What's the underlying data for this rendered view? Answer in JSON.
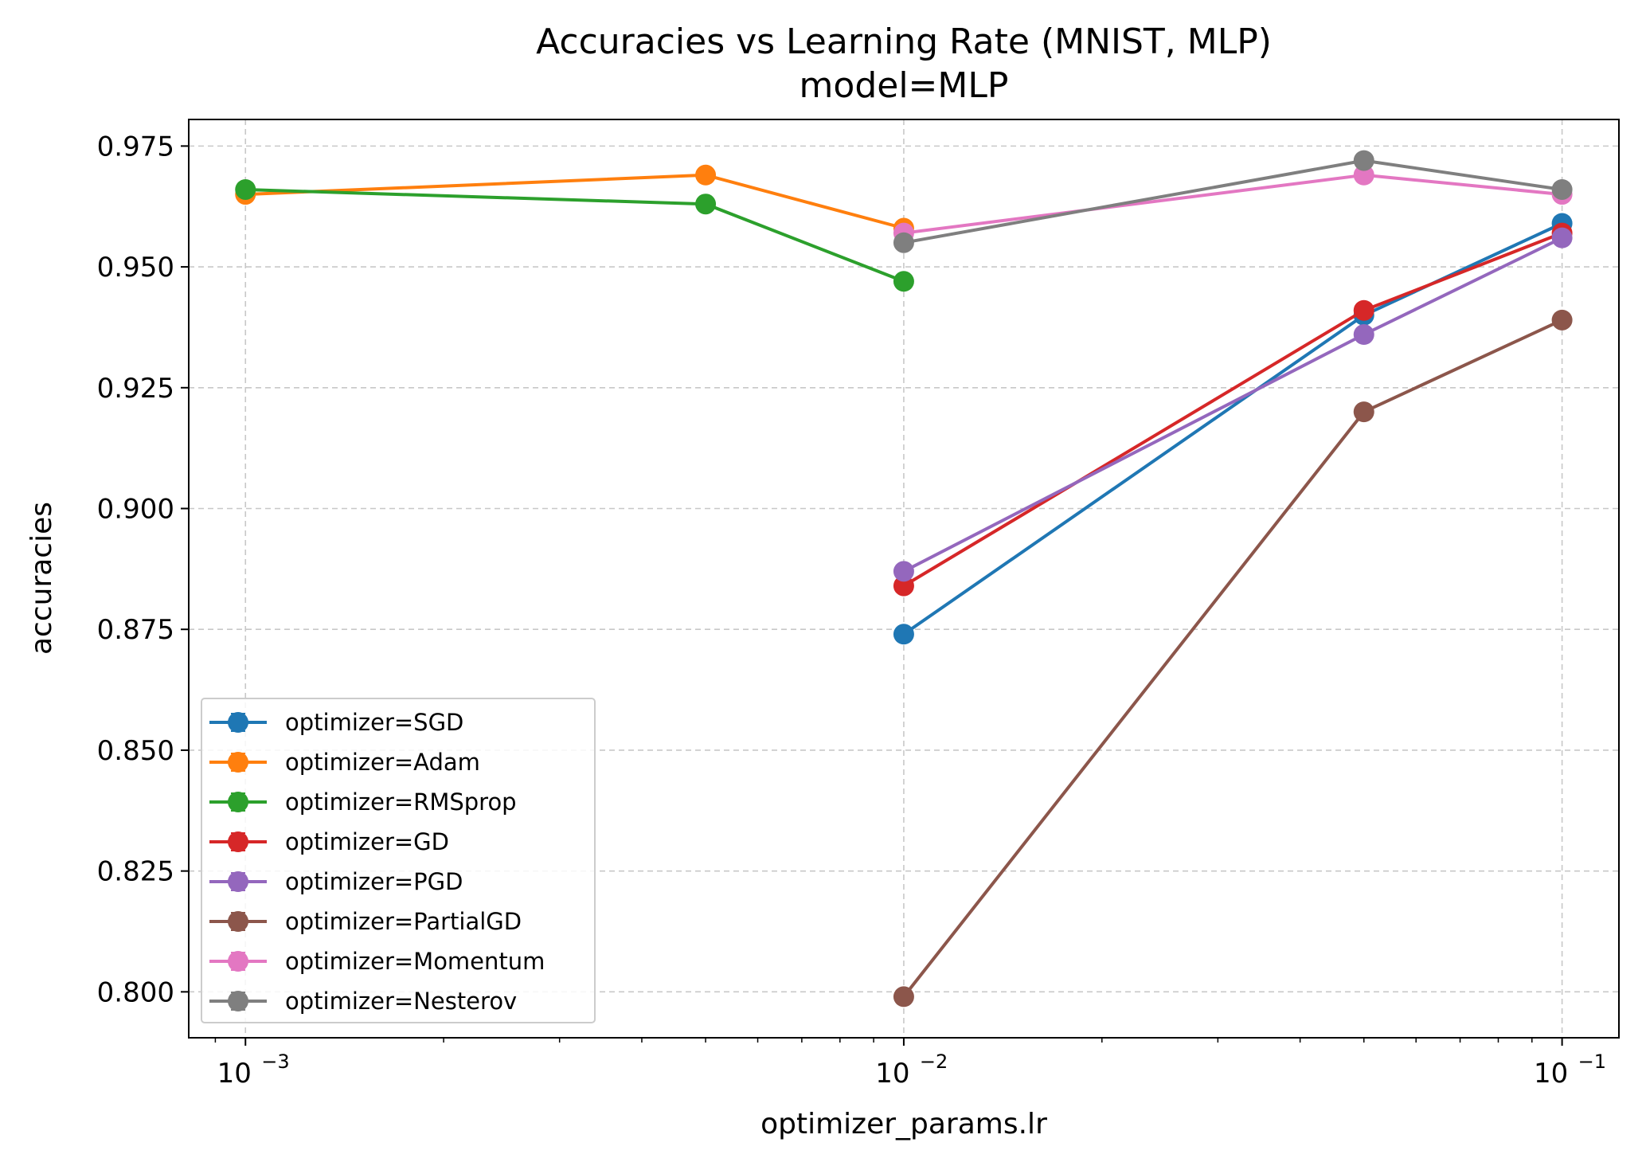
{
  "chart_data": {
    "type": "line",
    "title": "Accuracies vs Learning Rate (MNIST, MLP)",
    "subtitle": "model=MLP",
    "xlabel": "optimizer_params.lr",
    "ylabel": "accuracies",
    "xscale": "log",
    "xlim": [
      0.00082,
      0.122
    ],
    "ylim": [
      0.7905,
      0.9805
    ],
    "x_major_ticks": [
      0.001,
      0.01,
      0.1
    ],
    "x_tick_labels": [
      {
        "base": "10",
        "exp": "−3"
      },
      {
        "base": "10",
        "exp": "−2"
      },
      {
        "base": "10",
        "exp": "−1"
      }
    ],
    "y_ticks": [
      0.8,
      0.825,
      0.85,
      0.875,
      0.9,
      0.925,
      0.95,
      0.975
    ],
    "y_tick_labels": [
      "0.800",
      "0.825",
      "0.850",
      "0.875",
      "0.900",
      "0.925",
      "0.950",
      "0.975"
    ],
    "grid": true,
    "legend_position": "lower-left",
    "series": [
      {
        "name": "optimizer=SGD",
        "color": "#1f77b4",
        "points": [
          [
            0.01,
            0.874
          ],
          [
            0.05,
            0.94
          ],
          [
            0.1,
            0.959
          ]
        ]
      },
      {
        "name": "optimizer=Adam",
        "color": "#ff7f0e",
        "points": [
          [
            0.001,
            0.965
          ],
          [
            0.005,
            0.969
          ],
          [
            0.01,
            0.958
          ]
        ]
      },
      {
        "name": "optimizer=RMSprop",
        "color": "#2ca02c",
        "points": [
          [
            0.001,
            0.966
          ],
          [
            0.005,
            0.963
          ],
          [
            0.01,
            0.947
          ]
        ]
      },
      {
        "name": "optimizer=GD",
        "color": "#d62728",
        "points": [
          [
            0.01,
            0.884
          ],
          [
            0.05,
            0.941
          ],
          [
            0.1,
            0.957
          ]
        ]
      },
      {
        "name": "optimizer=PGD",
        "color": "#9467bd",
        "points": [
          [
            0.01,
            0.887
          ],
          [
            0.05,
            0.936
          ],
          [
            0.1,
            0.956
          ]
        ]
      },
      {
        "name": "optimizer=PartialGD",
        "color": "#8c564b",
        "points": [
          [
            0.01,
            0.799
          ],
          [
            0.05,
            0.92
          ],
          [
            0.1,
            0.939
          ]
        ]
      },
      {
        "name": "optimizer=Momentum",
        "color": "#e377c2",
        "points": [
          [
            0.01,
            0.957
          ],
          [
            0.05,
            0.969
          ],
          [
            0.1,
            0.965
          ]
        ]
      },
      {
        "name": "optimizer=Nesterov",
        "color": "#7f7f7f",
        "points": [
          [
            0.01,
            0.955
          ],
          [
            0.05,
            0.972
          ],
          [
            0.1,
            0.966
          ]
        ]
      }
    ]
  }
}
